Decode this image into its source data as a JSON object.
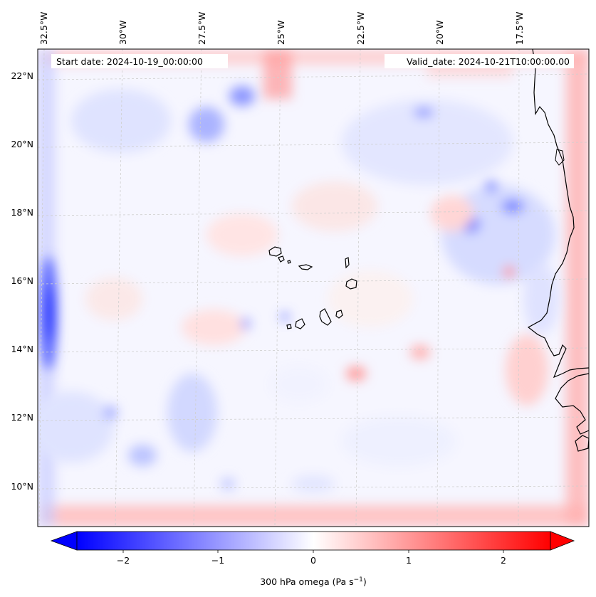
{
  "header": {
    "start_date": "Start date: 2024-10-19_00:00:00",
    "valid_date": "Valid_date: 2024-10-21T10:00:00.00"
  },
  "map": {
    "lon_labels": [
      "32.5°W",
      "30°W",
      "27.5°W",
      "25°W",
      "22.5°W",
      "20°W",
      "17.5°W"
    ],
    "lat_labels": [
      "22°N",
      "20°N",
      "18°N",
      "16°N",
      "14°N",
      "12°N",
      "10°N"
    ],
    "gridlines": true,
    "colors": {
      "negative": "#0000ff",
      "zero": "#ffffff",
      "positive": "#ff0000",
      "coastline": "#000000"
    }
  },
  "colorbar": {
    "ticks": [
      "−2",
      "−1",
      "0",
      "1",
      "2"
    ],
    "label": "300 hPa omega (Pa s",
    "label_sup": "−1",
    "label_close": ")",
    "range": [
      -2.7,
      2.7
    ],
    "extend": "both"
  }
}
